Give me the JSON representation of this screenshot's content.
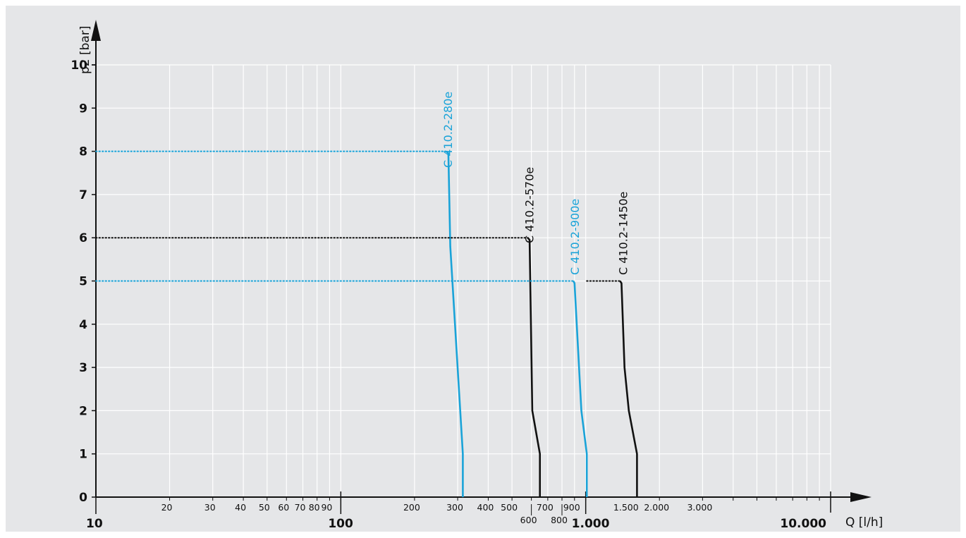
{
  "chart_data": {
    "type": "line",
    "xlabel": "Q [l/h]",
    "ylabel": "p2 [bar]",
    "x_scale": "log",
    "xlim": [
      10,
      10000
    ],
    "ylim": [
      0,
      10
    ],
    "grid": true,
    "y_ticks": [
      "0",
      "1",
      "2",
      "3",
      "4",
      "5",
      "6",
      "7",
      "8",
      "9",
      "10"
    ],
    "x_ticks": [
      {
        "value": 10,
        "label": "10",
        "major": true
      },
      {
        "value": 20,
        "label": "20"
      },
      {
        "value": 30,
        "label": "30"
      },
      {
        "value": 40,
        "label": "40"
      },
      {
        "value": 50,
        "label": "50"
      },
      {
        "value": 60,
        "label": "60"
      },
      {
        "value": 70,
        "label": "70"
      },
      {
        "value": 80,
        "label": "80"
      },
      {
        "value": 90,
        "label": "90"
      },
      {
        "value": 100,
        "label": "100",
        "major": true
      },
      {
        "value": 200,
        "label": "200"
      },
      {
        "value": 300,
        "label": "300"
      },
      {
        "value": 400,
        "label": "400"
      },
      {
        "value": 500,
        "label": "500"
      },
      {
        "value": 600,
        "label": "600",
        "low": true
      },
      {
        "value": 700,
        "label": "700"
      },
      {
        "value": 800,
        "label": "800",
        "low": true
      },
      {
        "value": 900,
        "label": "900"
      },
      {
        "value": 1000,
        "label": "1.000",
        "major": true
      },
      {
        "value": 1500,
        "label": "1.500"
      },
      {
        "value": 2000,
        "label": "2.000"
      },
      {
        "value": 3000,
        "label": "3.000"
      },
      {
        "value": 10000,
        "label": "10.000",
        "major": true
      }
    ],
    "series": [
      {
        "name": "C 410.2-280e",
        "color": "#1aa3d8",
        "setpoint": 8,
        "points": [
          [
            10,
            8
          ],
          [
            270,
            8
          ],
          [
            275,
            7.95
          ],
          [
            280,
            5.8
          ],
          [
            315,
            1
          ],
          [
            315,
            0
          ]
        ]
      },
      {
        "name": "C 410.2-570e",
        "color": "#111111",
        "setpoint": 6,
        "points": [
          [
            10,
            6
          ],
          [
            580,
            6
          ],
          [
            590,
            5.95
          ],
          [
            605,
            2
          ],
          [
            650,
            1
          ],
          [
            650,
            0
          ]
        ]
      },
      {
        "name": "C 410.2-900e",
        "color": "#1aa3d8",
        "setpoint": 5,
        "points": [
          [
            10,
            5
          ],
          [
            890,
            5
          ],
          [
            900,
            4.95
          ],
          [
            960,
            2
          ],
          [
            1010,
            1
          ],
          [
            1010,
            0
          ]
        ]
      },
      {
        "name": "C 410.2-1450e",
        "color": "#111111",
        "setpoint": 5,
        "points": [
          [
            1010,
            5
          ],
          [
            1380,
            5
          ],
          [
            1400,
            4.95
          ],
          [
            1440,
            3
          ],
          [
            1500,
            2
          ],
          [
            1620,
            1
          ],
          [
            1620,
            0
          ]
        ]
      }
    ]
  }
}
